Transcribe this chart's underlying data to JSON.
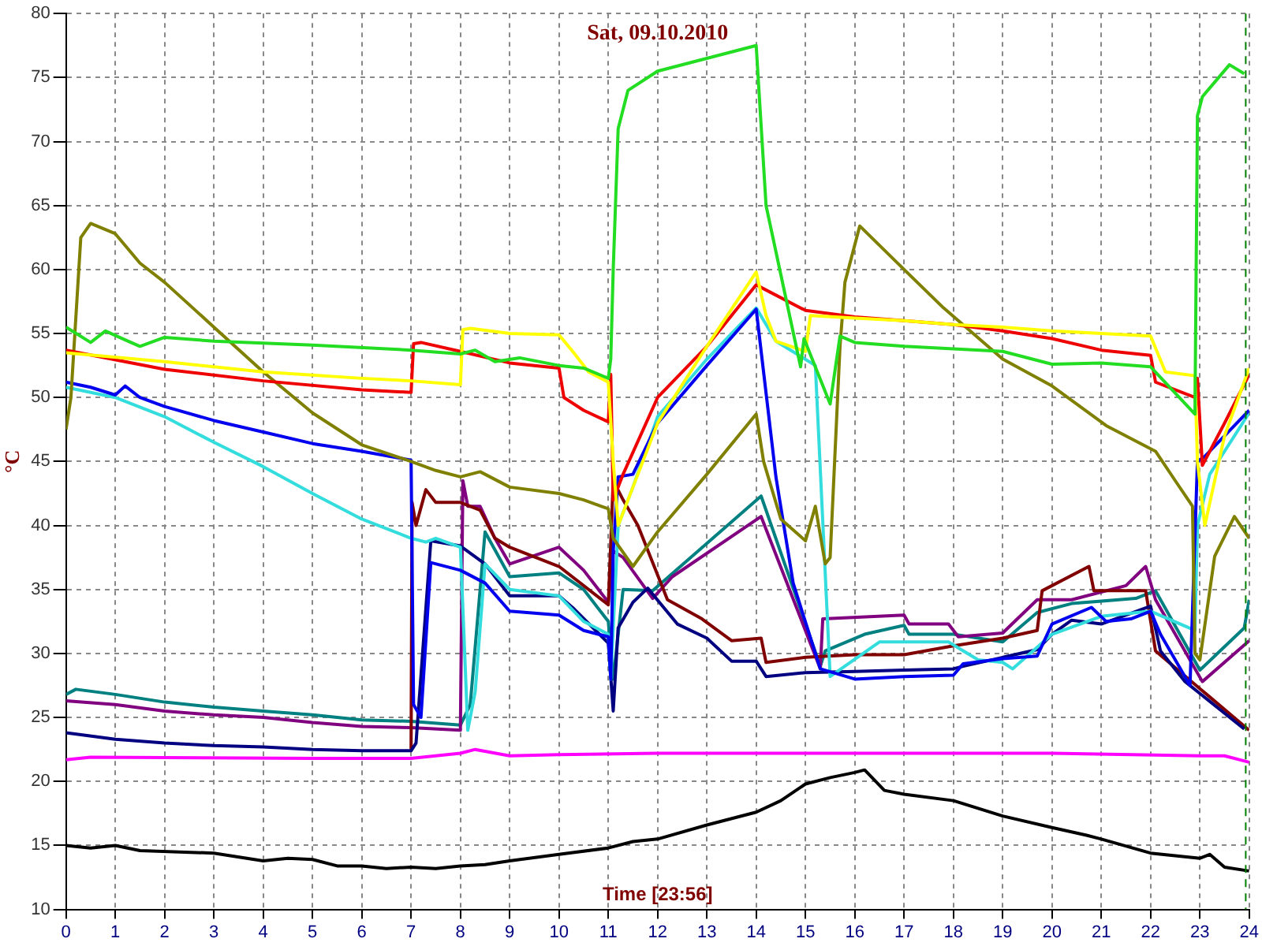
{
  "chart_data": {
    "type": "line",
    "title": "Sat, 09.10.2010",
    "xlabel": "Time [23:56]",
    "ylabel": "°C",
    "xlim": [
      0,
      24
    ],
    "xticks": [
      0,
      1,
      2,
      3,
      4,
      5,
      6,
      7,
      8,
      9,
      10,
      11,
      12,
      13,
      14,
      15,
      16,
      17,
      18,
      19,
      20,
      21,
      22,
      23,
      24
    ],
    "ylim": [
      10,
      80
    ],
    "yticks": [
      10,
      15,
      20,
      25,
      30,
      35,
      40,
      45,
      50,
      55,
      60,
      65,
      70,
      75,
      80
    ],
    "grid": true,
    "legend": false,
    "marker": "none",
    "line_style": "solid",
    "ref_lines": [
      {
        "axis": "x",
        "value": 23.93,
        "color": "#008000",
        "line_style": "dashed"
      }
    ],
    "series": [
      {
        "color": "#22dd22",
        "x": [
          0,
          0.5,
          0.8,
          1.2,
          1.5,
          2,
          3,
          5,
          7,
          8,
          8.3,
          8.7,
          9.2,
          10,
          10.5,
          11,
          11.05,
          11.1,
          11.2,
          11.4,
          12,
          13,
          14,
          14.2,
          14.65,
          14.9,
          14.97,
          15.5,
          15.7,
          16,
          17,
          18,
          19,
          20,
          21,
          22,
          22.9,
          22.95,
          23.05,
          23.6,
          23.9
        ],
        "values": [
          55.5,
          54.3,
          55.2,
          54.5,
          54,
          54.7,
          54.4,
          54.1,
          53.7,
          53.4,
          53.7,
          52.8,
          53.1,
          52.5,
          52.3,
          51.5,
          53,
          60,
          71,
          74,
          75.5,
          76.5,
          77.5,
          65,
          56.9,
          52.4,
          54.6,
          49.5,
          54.8,
          54.3,
          54,
          53.8,
          53.6,
          52.6,
          52.7,
          52.4,
          48.7,
          72,
          73.5,
          76,
          75.3
        ]
      },
      {
        "color": "#ffff00",
        "x": [
          0,
          2,
          4,
          6,
          7,
          8,
          8.05,
          8.2,
          9,
          10,
          10.3,
          10.6,
          11,
          11.1,
          11.2,
          11.5,
          12,
          13,
          14,
          14.2,
          14.4,
          15,
          15.1,
          16,
          17,
          18,
          19,
          20,
          21,
          22,
          22.3,
          22.9,
          22.95,
          23.1,
          23.5,
          24
        ],
        "values": [
          53.5,
          52.8,
          52,
          51.5,
          51.3,
          51,
          55.3,
          55.4,
          55,
          54.9,
          53.5,
          52,
          51.2,
          45,
          40,
          43,
          48,
          54,
          59.8,
          56.4,
          54.4,
          53.6,
          56.4,
          56.2,
          56,
          55.7,
          55.5,
          55.2,
          55,
          54.8,
          52,
          51.7,
          45,
          40,
          47,
          52.3
        ]
      },
      {
        "color": "#ee0000",
        "x": [
          0,
          2,
          4,
          6,
          7,
          7.05,
          7.2,
          8,
          9,
          10,
          10.1,
          10.5,
          11,
          11.05,
          11.1,
          11.3,
          12,
          13,
          14,
          15,
          16,
          17,
          18,
          19,
          20,
          21,
          22,
          22.1,
          22.9,
          22.95,
          23.05,
          23.5,
          24
        ],
        "values": [
          53.7,
          52.2,
          51.3,
          50.6,
          50.4,
          54.2,
          54.3,
          53.6,
          52.7,
          52.3,
          50,
          49,
          48.1,
          51.8,
          42,
          44,
          50,
          54,
          58.8,
          56.8,
          56.3,
          56,
          55.7,
          55.2,
          54.6,
          53.7,
          53.3,
          51.2,
          50,
          51.5,
          44.7,
          48,
          51.8
        ]
      },
      {
        "color": "#808000",
        "x": [
          0,
          0.1,
          0.3,
          0.5,
          1,
          1.5,
          2,
          3,
          4,
          5,
          6,
          7,
          7.5,
          8,
          8.4,
          9,
          10,
          10.5,
          11,
          11.1,
          11.5,
          12,
          13,
          14,
          14.15,
          14.5,
          15,
          15.2,
          15.4,
          15.5,
          15.7,
          15.8,
          16.1,
          17,
          17.8,
          19,
          20,
          21.1,
          22.1,
          22.5,
          22.85,
          22.9,
          23,
          23.3,
          23.7,
          24
        ],
        "values": [
          47.5,
          50,
          62.5,
          63.6,
          62.8,
          60.5,
          59,
          55.5,
          52,
          48.8,
          46.3,
          45,
          44.3,
          43.8,
          44.2,
          43,
          42.5,
          42,
          41.3,
          39,
          36.8,
          39.5,
          44,
          48.7,
          45,
          40.5,
          38.8,
          41.5,
          37,
          37.5,
          54,
          59,
          63.4,
          60,
          57,
          53,
          50.9,
          47.8,
          45.8,
          43.5,
          41.5,
          30,
          29.5,
          37.6,
          40.7,
          39
        ]
      },
      {
        "color": "#0000ee",
        "x": [
          0,
          0.5,
          1,
          1.2,
          1.5,
          2,
          3,
          4,
          5,
          6,
          7,
          7.05,
          7.2,
          7.4,
          8,
          8.5,
          9,
          10,
          10.5,
          11,
          11.05,
          11.1,
          11.2,
          11.5,
          12,
          13,
          14,
          14.4,
          14.75,
          15.3,
          16,
          17,
          18,
          18.2,
          19,
          19.7,
          20,
          20.8,
          21.1,
          21.6,
          22,
          22.2,
          22.8,
          22.95,
          23.1,
          24
        ],
        "values": [
          51.2,
          50.8,
          50.2,
          50.9,
          50,
          49.3,
          48.2,
          47.3,
          46.4,
          45.8,
          45.1,
          26,
          25,
          37.1,
          36.5,
          35.5,
          33.3,
          33,
          31.8,
          31.3,
          28,
          38,
          43.8,
          44,
          48,
          52.5,
          56.9,
          43.8,
          35.5,
          28.8,
          28,
          28.2,
          28.3,
          29.2,
          29.6,
          29.8,
          32.3,
          33.6,
          32.5,
          32.7,
          33.3,
          31.5,
          27.5,
          45,
          45.4,
          49
        ]
      },
      {
        "color": "#33dddd",
        "x": [
          0,
          1,
          2,
          3,
          4,
          5,
          6,
          7,
          7.3,
          7.5,
          8,
          8.15,
          8.3,
          8.5,
          9,
          10,
          10.5,
          11,
          11.05,
          11.2,
          11.5,
          12,
          13,
          14,
          14.4,
          15.2,
          15.5,
          16.5,
          17.9,
          18.5,
          19,
          19.2,
          20,
          21,
          22,
          22.9,
          22.95,
          23.2,
          24
        ],
        "values": [
          50.8,
          50,
          48.5,
          46.5,
          44.6,
          42.5,
          40.5,
          39,
          38.7,
          39,
          38.3,
          24,
          27,
          37,
          35,
          34.5,
          32.5,
          31.5,
          28,
          40,
          43,
          48.5,
          53,
          57,
          54.4,
          52.5,
          28.2,
          30.9,
          30.9,
          29.5,
          29.3,
          28.8,
          31.5,
          32.9,
          33.3,
          31.8,
          40,
          44,
          48.8
        ]
      },
      {
        "color": "#000080",
        "x": [
          0,
          1,
          2,
          3,
          4,
          5,
          6,
          7,
          7.1,
          7.4,
          8,
          8.5,
          9,
          10,
          10.3,
          11,
          11.1,
          11.2,
          11.5,
          11.8,
          12.4,
          13,
          13.5,
          14,
          14.2,
          15,
          16,
          17,
          18,
          18.2,
          19.7,
          20,
          20.4,
          21,
          22,
          22.2,
          22.7,
          23.9
        ],
        "values": [
          23.8,
          23.3,
          23,
          22.8,
          22.7,
          22.5,
          22.4,
          22.4,
          23,
          38.8,
          38.4,
          37,
          34.5,
          34.5,
          33.5,
          30.8,
          25.5,
          32,
          34,
          35.1,
          32.3,
          31.2,
          29.4,
          29.4,
          28.2,
          28.5,
          28.6,
          28.7,
          28.8,
          29,
          30.3,
          31.5,
          32.6,
          32.3,
          33.7,
          30.2,
          27.8,
          24.1
        ]
      },
      {
        "color": "#800000",
        "x": [
          7,
          7.02,
          7.1,
          7.3,
          7.5,
          8,
          8.4,
          8.7,
          9,
          10,
          11,
          11.1,
          11.3,
          11.6,
          12.2,
          12.9,
          13.5,
          14.1,
          14.2,
          15,
          16,
          17,
          18,
          19,
          19.7,
          19.8,
          20.75,
          20.85,
          21.9,
          22.1,
          23.2,
          24
        ],
        "values": [
          22.5,
          41.8,
          40,
          42.8,
          41.8,
          41.8,
          41.2,
          39,
          38.3,
          36.8,
          33.8,
          43.5,
          42,
          40,
          34.2,
          32.7,
          31,
          31.2,
          29.3,
          29.7,
          29.9,
          29.9,
          30.6,
          31.2,
          31.8,
          34.9,
          36.8,
          34.9,
          34.9,
          30.2,
          26.6,
          24
        ]
      },
      {
        "color": "#800080",
        "x": [
          0,
          1,
          2,
          3,
          4,
          5,
          6,
          7,
          8,
          8.05,
          8.15,
          8.4,
          8.7,
          9,
          10,
          10.5,
          11,
          11.1,
          11.3,
          11.9,
          12.3,
          14.1,
          15.3,
          15.35,
          17,
          17.1,
          17.9,
          18.1,
          19,
          19.7,
          20.4,
          21.5,
          21.9,
          22.1,
          23.05,
          24
        ],
        "values": [
          26.3,
          26,
          25.5,
          25.2,
          25,
          24.6,
          24.3,
          24.2,
          24,
          43.5,
          41.5,
          41.5,
          39,
          37,
          38.3,
          36.5,
          34,
          38,
          37.5,
          34.3,
          36,
          40.7,
          28.8,
          32.7,
          33,
          32.3,
          32.3,
          31.3,
          31.6,
          34.2,
          34.2,
          35.3,
          36.8,
          34.2,
          27.8,
          31
        ]
      },
      {
        "color": "#008080",
        "x": [
          0,
          0.2,
          1,
          2,
          3,
          4,
          5,
          6,
          7,
          8,
          8.2,
          8.5,
          9,
          10,
          10.5,
          11,
          11.1,
          11.3,
          11.9,
          14.1,
          15.3,
          15.4,
          16.2,
          17,
          17.1,
          18,
          19,
          19.7,
          20.4,
          21.7,
          22.1,
          23,
          23.9,
          24
        ],
        "values": [
          26.8,
          27.2,
          26.8,
          26.2,
          25.8,
          25.5,
          25.2,
          24.8,
          24.7,
          24.4,
          26,
          39.5,
          36,
          36.3,
          35,
          32.5,
          28,
          35,
          34.9,
          42.3,
          29,
          30.2,
          31.5,
          32.2,
          31.5,
          31.5,
          30.9,
          33.2,
          33.9,
          34.3,
          34.9,
          28.7,
          32,
          34.2
        ]
      },
      {
        "color": "#ff00ff",
        "x": [
          0,
          0.5,
          5,
          7,
          8,
          8.3,
          9,
          10,
          12,
          20,
          23,
          23.5,
          24
        ],
        "values": [
          21.7,
          21.9,
          21.8,
          21.8,
          22.2,
          22.5,
          22,
          22.1,
          22.2,
          22.2,
          22,
          22,
          21.5
        ]
      },
      {
        "color": "#000000",
        "x": [
          0,
          0.5,
          1,
          1.5,
          3,
          4,
          4.5,
          5,
          5.5,
          6,
          6.5,
          7,
          7.5,
          8,
          8.5,
          9,
          10,
          11,
          11.5,
          12,
          13,
          14,
          14.5,
          15,
          15.5,
          16,
          16.2,
          16.6,
          17,
          18,
          19,
          20,
          20.7,
          21,
          22,
          22.5,
          23,
          23.2,
          23.5,
          24
        ],
        "values": [
          15,
          14.8,
          15,
          14.6,
          14.4,
          13.8,
          14,
          13.9,
          13.4,
          13.4,
          13.2,
          13.3,
          13.2,
          13.4,
          13.5,
          13.8,
          14.3,
          14.8,
          15.3,
          15.5,
          16.6,
          17.6,
          18.5,
          19.8,
          20.3,
          20.7,
          20.9,
          19.3,
          19,
          18.5,
          17.3,
          16.4,
          15.8,
          15.5,
          14.4,
          14.2,
          14,
          14.3,
          13.3,
          13
        ]
      }
    ]
  }
}
